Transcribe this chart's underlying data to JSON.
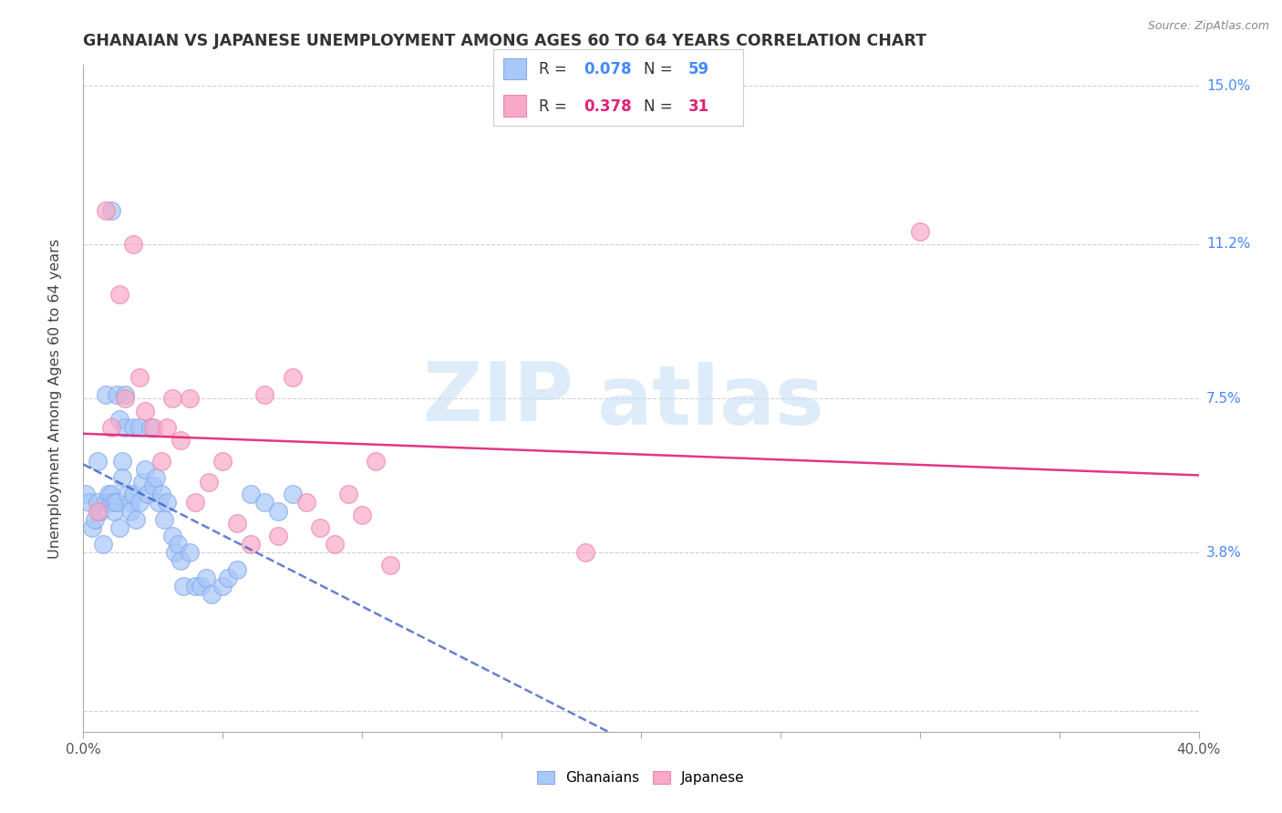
{
  "title": "GHANAIAN VS JAPANESE UNEMPLOYMENT AMONG AGES 60 TO 64 YEARS CORRELATION CHART",
  "source": "Source: ZipAtlas.com",
  "ylabel": "Unemployment Among Ages 60 to 64 years",
  "xlim": [
    0.0,
    0.4
  ],
  "ylim": [
    -0.005,
    0.155
  ],
  "ghanaian_color": "#a8c8f8",
  "ghanaian_edge": "#88aaee",
  "japanese_color": "#f8a8c8",
  "japanese_edge": "#ee88aa",
  "ghanaian_line_color": "#3355bb",
  "japanese_line_color": "#dd2277",
  "ytick_positions": [
    0.0,
    0.038,
    0.075,
    0.112,
    0.15
  ],
  "ytick_labels": [
    "",
    "3.8%",
    "7.5%",
    "11.2%",
    "15.0%"
  ],
  "xtick_positions": [
    0.0,
    0.05,
    0.1,
    0.15,
    0.2,
    0.25,
    0.3,
    0.35,
    0.4
  ],
  "xtick_labels": [
    "0.0%",
    "",
    "",
    "",
    "",
    "",
    "",
    "",
    "40.0%"
  ],
  "legend_R_ghana": "0.078",
  "legend_N_ghana": "59",
  "legend_R_japan": "0.378",
  "legend_N_japan": "31",
  "ghana_x": [
    0.001,
    0.002,
    0.003,
    0.004,
    0.005,
    0.005,
    0.006,
    0.007,
    0.008,
    0.008,
    0.009,
    0.01,
    0.01,
    0.011,
    0.011,
    0.012,
    0.012,
    0.013,
    0.013,
    0.014,
    0.014,
    0.015,
    0.015,
    0.016,
    0.017,
    0.017,
    0.018,
    0.018,
    0.019,
    0.02,
    0.02,
    0.021,
    0.022,
    0.023,
    0.024,
    0.025,
    0.026,
    0.027,
    0.028,
    0.029,
    0.03,
    0.032,
    0.033,
    0.034,
    0.035,
    0.036,
    0.038,
    0.04,
    0.042,
    0.044,
    0.046,
    0.05,
    0.052,
    0.055,
    0.06,
    0.065,
    0.07,
    0.075,
    0.01
  ],
  "ghana_y": [
    0.052,
    0.05,
    0.044,
    0.046,
    0.06,
    0.05,
    0.048,
    0.04,
    0.076,
    0.05,
    0.052,
    0.05,
    0.052,
    0.05,
    0.048,
    0.076,
    0.05,
    0.044,
    0.07,
    0.06,
    0.056,
    0.076,
    0.068,
    0.052,
    0.05,
    0.048,
    0.052,
    0.068,
    0.046,
    0.05,
    0.068,
    0.055,
    0.058,
    0.052,
    0.068,
    0.054,
    0.056,
    0.05,
    0.052,
    0.046,
    0.05,
    0.042,
    0.038,
    0.04,
    0.036,
    0.03,
    0.038,
    0.03,
    0.03,
    0.032,
    0.028,
    0.03,
    0.032,
    0.034,
    0.052,
    0.05,
    0.048,
    0.052,
    0.12
  ],
  "japan_x": [
    0.005,
    0.008,
    0.01,
    0.013,
    0.015,
    0.018,
    0.02,
    0.022,
    0.025,
    0.028,
    0.03,
    0.032,
    0.035,
    0.038,
    0.04,
    0.045,
    0.05,
    0.055,
    0.06,
    0.065,
    0.07,
    0.075,
    0.08,
    0.085,
    0.09,
    0.095,
    0.1,
    0.105,
    0.11,
    0.3,
    0.18
  ],
  "japan_y": [
    0.048,
    0.12,
    0.068,
    0.1,
    0.075,
    0.112,
    0.08,
    0.072,
    0.068,
    0.06,
    0.068,
    0.075,
    0.065,
    0.075,
    0.05,
    0.055,
    0.06,
    0.045,
    0.04,
    0.076,
    0.042,
    0.08,
    0.05,
    0.044,
    0.04,
    0.052,
    0.047,
    0.06,
    0.035,
    0.115,
    0.038
  ]
}
